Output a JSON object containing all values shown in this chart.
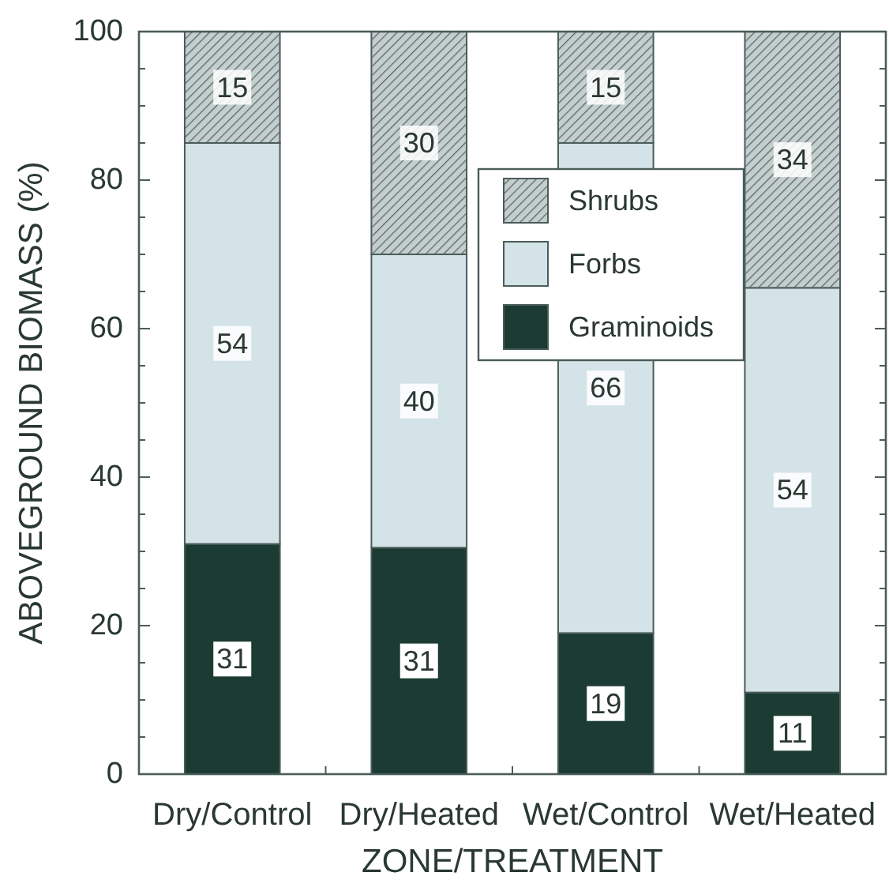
{
  "chart_data": {
    "type": "bar",
    "stacked": true,
    "xlabel": "ZONE/TREATMENT",
    "ylabel": "ABOVEGROUND BIOMASS (%)",
    "categories": [
      "Dry/Control",
      "Dry/Heated",
      "Wet/Control",
      "Wet/Heated"
    ],
    "series": [
      {
        "name": "Graminoids",
        "color": "#1b3b33",
        "values": [
          31,
          30.5,
          19,
          11
        ],
        "value_labels": [
          "31",
          "31",
          "19",
          "11"
        ]
      },
      {
        "name": "Forbs",
        "color": "#d4e3e8",
        "values": [
          54,
          39.5,
          66,
          54.5
        ],
        "value_labels": [
          "54",
          "40",
          "66",
          "54"
        ]
      },
      {
        "name": "Shrubs",
        "color": "#c3cfcf",
        "values": [
          15,
          30,
          15,
          34.5
        ],
        "value_labels": [
          "15",
          "30",
          "15",
          "34"
        ]
      }
    ],
    "ylim": [
      0,
      100
    ],
    "yticks": [
      0,
      {
        "value": 5,
        "label": null
      },
      {
        "value": 10,
        "label": null
      },
      {
        "value": 15,
        "label": null
      },
      20,
      {
        "value": 25,
        "label": null
      },
      {
        "value": 30,
        "label": null
      },
      {
        "value": 35,
        "label": null
      },
      40,
      {
        "value": 45,
        "label": null
      },
      {
        "value": 50,
        "label": null
      },
      {
        "value": 55,
        "label": null
      },
      60,
      {
        "value": 65,
        "label": null
      },
      {
        "value": 70,
        "label": null
      },
      {
        "value": 75,
        "label": null
      },
      80,
      {
        "value": 85,
        "label": null
      },
      {
        "value": 90,
        "label": null
      },
      {
        "value": 95,
        "label": null
      },
      100
    ],
    "legend": "top right"
  }
}
